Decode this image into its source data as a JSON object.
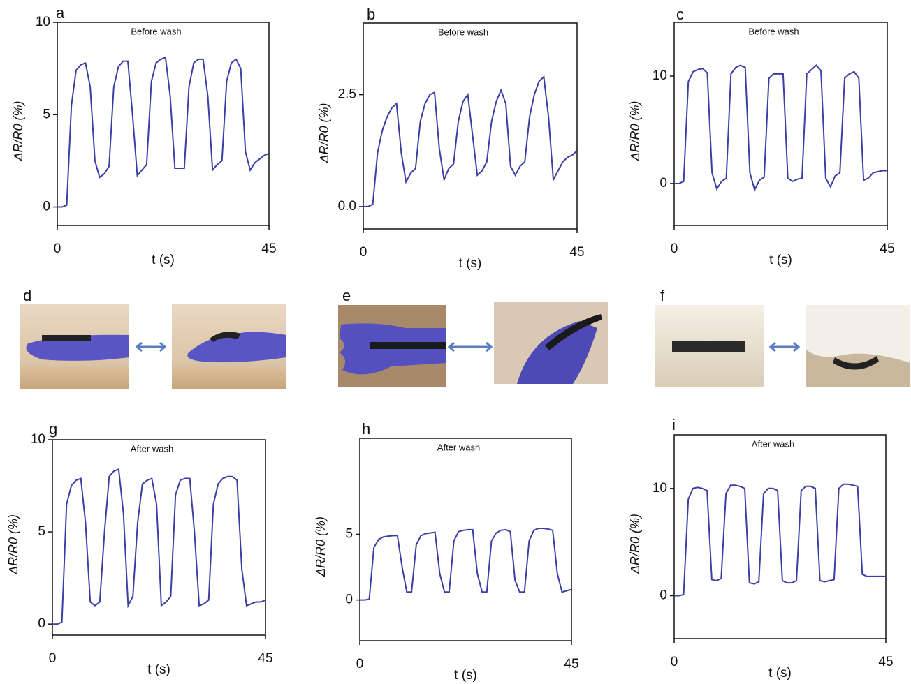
{
  "chart_data": [
    {
      "type": "line",
      "panel": "a",
      "title": "Before wash",
      "xlabel": "t (s)",
      "ylabel": "ΔR/R0 (%)",
      "color": "#3a3fa6",
      "x": [
        0,
        1,
        2,
        3,
        4,
        5,
        6,
        7,
        8,
        9,
        10,
        11,
        12,
        13,
        14,
        15,
        16,
        17,
        18,
        19,
        20,
        21,
        22,
        23,
        24,
        25,
        26,
        27,
        28,
        29,
        30,
        31,
        32,
        33,
        34,
        35,
        36,
        37,
        38,
        39,
        40,
        41,
        42,
        43,
        44,
        45
      ],
      "values": [
        0,
        0,
        0.1,
        5.5,
        7.4,
        7.7,
        7.8,
        6.5,
        2.5,
        1.6,
        1.8,
        2.2,
        6.5,
        7.6,
        7.9,
        7.9,
        5.0,
        1.7,
        2.0,
        2.3,
        6.8,
        7.8,
        8.0,
        8.1,
        6.0,
        2.1,
        2.1,
        2.1,
        6.5,
        7.8,
        8.0,
        8.0,
        6.0,
        2.0,
        2.3,
        2.5,
        6.8,
        7.8,
        8.0,
        7.5,
        3.0,
        2.0,
        2.4,
        2.6,
        2.8,
        2.9
      ],
      "xlim": [
        0,
        45
      ],
      "xticks": [
        0,
        45
      ],
      "ylim": [
        -1,
        10
      ],
      "yticks": [
        0,
        5,
        10
      ]
    },
    {
      "type": "line",
      "panel": "b",
      "title": "Before wash",
      "xlabel": "t (s)",
      "ylabel": "ΔR/R0 (%)",
      "color": "#3a3fa6",
      "x": [
        0,
        1,
        2,
        3,
        4,
        5,
        6,
        7,
        8,
        9,
        10,
        11,
        12,
        13,
        14,
        15,
        16,
        17,
        18,
        19,
        20,
        21,
        22,
        23,
        24,
        25,
        26,
        27,
        28,
        29,
        30,
        31,
        32,
        33,
        34,
        35,
        36,
        37,
        38,
        39,
        40,
        41,
        42,
        43,
        44,
        45
      ],
      "values": [
        0,
        0,
        0.05,
        1.2,
        1.7,
        2.0,
        2.2,
        2.3,
        1.2,
        0.55,
        0.75,
        0.85,
        1.9,
        2.3,
        2.5,
        2.55,
        1.3,
        0.6,
        0.85,
        0.95,
        1.9,
        2.35,
        2.5,
        1.6,
        0.7,
        0.8,
        1.0,
        1.9,
        2.35,
        2.6,
        2.3,
        0.9,
        0.7,
        0.9,
        1.0,
        2.0,
        2.5,
        2.8,
        2.9,
        2.0,
        0.6,
        0.8,
        1.0,
        1.1,
        1.15,
        1.25
      ],
      "xlim": [
        0,
        45
      ],
      "xticks": [
        0,
        45
      ],
      "ylim": [
        -0.5,
        4.1
      ],
      "yticks": [
        {
          "value": 0,
          "label": "0.0"
        },
        2.5
      ]
    },
    {
      "type": "line",
      "panel": "c",
      "title": "Before wash",
      "xlabel": "t (s)",
      "ylabel": "ΔR/R0 (%)",
      "color": "#3a3fa6",
      "x": [
        0,
        1,
        2,
        3,
        4,
        5,
        6,
        7,
        8,
        9,
        10,
        11,
        12,
        13,
        14,
        15,
        16,
        17,
        18,
        19,
        20,
        21,
        22,
        23,
        24,
        25,
        26,
        27,
        28,
        29,
        30,
        31,
        32,
        33,
        34,
        35,
        36,
        37,
        38,
        39,
        40,
        41,
        42,
        43,
        44,
        45
      ],
      "values": [
        0,
        0,
        0.2,
        9.5,
        10.4,
        10.6,
        10.7,
        10.3,
        1.0,
        -0.5,
        0.2,
        0.5,
        10.2,
        10.8,
        11.0,
        10.8,
        1.0,
        -0.6,
        0.3,
        0.6,
        9.8,
        10.2,
        10.2,
        10.2,
        0.5,
        0.2,
        0.4,
        0.5,
        10.2,
        10.6,
        11.0,
        10.5,
        0.5,
        -0.3,
        0.7,
        1.0,
        9.8,
        10.2,
        10.4,
        9.8,
        0.3,
        0.5,
        1.0,
        1.1,
        1.2,
        1.2
      ],
      "xlim": [
        0,
        45
      ],
      "xticks": [
        0,
        45
      ],
      "ylim": [
        -3.9,
        15
      ],
      "yticks": [
        0,
        10
      ]
    },
    {
      "type": "line",
      "panel": "g",
      "title": "After wash",
      "xlabel": "t (s)",
      "ylabel": "ΔR/R0 (%)",
      "color": "#3a3fa6",
      "x": [
        0,
        1,
        2,
        3,
        4,
        5,
        6,
        7,
        8,
        9,
        10,
        11,
        12,
        13,
        14,
        15,
        16,
        17,
        18,
        19,
        20,
        21,
        22,
        23,
        24,
        25,
        26,
        27,
        28,
        29,
        30,
        31,
        32,
        33,
        34,
        35,
        36,
        37,
        38,
        39,
        40,
        41,
        42,
        43,
        44,
        45
      ],
      "values": [
        0,
        0,
        0.1,
        6.5,
        7.5,
        7.8,
        7.9,
        5.5,
        1.2,
        1.0,
        1.2,
        5.0,
        8.0,
        8.3,
        8.4,
        6.0,
        1.0,
        1.5,
        5.5,
        7.6,
        7.8,
        7.9,
        6.5,
        1.0,
        1.2,
        1.5,
        7.0,
        7.8,
        7.9,
        7.9,
        5.0,
        1.0,
        1.1,
        1.3,
        6.5,
        7.6,
        7.9,
        8.0,
        8.0,
        7.8,
        3.0,
        1.0,
        1.1,
        1.2,
        1.2,
        1.3
      ],
      "xlim": [
        0,
        45
      ],
      "xticks": [
        0,
        45
      ],
      "ylim": [
        -0.6,
        10
      ],
      "yticks": [
        0,
        5,
        10
      ]
    },
    {
      "type": "line",
      "panel": "h",
      "title": "After wash",
      "xlabel": "t (s)",
      "ylabel": "ΔR/R0 (%)",
      "color": "#3a3fa6",
      "x": [
        0,
        1,
        2,
        3,
        4,
        5,
        6,
        7,
        8,
        9,
        10,
        11,
        12,
        13,
        14,
        15,
        16,
        17,
        18,
        19,
        20,
        21,
        22,
        23,
        24,
        25,
        26,
        27,
        28,
        29,
        30,
        31,
        32,
        33,
        34,
        35,
        36,
        37,
        38,
        39,
        40,
        41,
        42,
        43,
        44,
        45
      ],
      "values": [
        0,
        0,
        0.05,
        4.0,
        4.6,
        4.8,
        4.85,
        4.9,
        4.9,
        2.5,
        0.6,
        0.6,
        4.2,
        4.9,
        5.05,
        5.1,
        5.15,
        2.0,
        0.6,
        0.6,
        4.5,
        5.2,
        5.3,
        5.35,
        5.35,
        2.0,
        0.6,
        0.6,
        4.5,
        5.1,
        5.3,
        5.35,
        5.2,
        1.5,
        0.6,
        0.6,
        4.5,
        5.3,
        5.45,
        5.45,
        5.4,
        5.3,
        2.0,
        0.6,
        0.7,
        0.8
      ],
      "xlim": [
        0,
        45
      ],
      "xticks": [
        0,
        45
      ],
      "ylim": [
        -3.1,
        12.3
      ],
      "yticks": [
        0,
        5
      ]
    },
    {
      "type": "line",
      "panel": "i",
      "title": "After wash",
      "xlabel": "t (s)",
      "ylabel": "ΔR/R0 (%)",
      "color": "#3a3fa6",
      "x": [
        0,
        1,
        2,
        3,
        4,
        5,
        6,
        7,
        8,
        9,
        10,
        11,
        12,
        13,
        14,
        15,
        16,
        17,
        18,
        19,
        20,
        21,
        22,
        23,
        24,
        25,
        26,
        27,
        28,
        29,
        30,
        31,
        32,
        33,
        34,
        35,
        36,
        37,
        38,
        39,
        40,
        41,
        42,
        43,
        44,
        45
      ],
      "values": [
        0,
        0,
        0.1,
        9.0,
        10.0,
        10.1,
        10.0,
        9.8,
        1.5,
        1.4,
        1.6,
        9.5,
        10.3,
        10.3,
        10.2,
        10.0,
        1.2,
        1.1,
        1.3,
        9.5,
        10.0,
        10.0,
        9.8,
        1.4,
        1.2,
        1.2,
        1.4,
        9.8,
        10.2,
        10.2,
        10.0,
        1.4,
        1.3,
        1.4,
        1.5,
        10.0,
        10.4,
        10.4,
        10.3,
        10.2,
        2.0,
        1.8,
        1.8,
        1.8,
        1.8,
        1.8
      ],
      "xlim": [
        0,
        45
      ],
      "xticks": [
        0,
        45
      ],
      "ylim": [
        -4,
        15
      ],
      "yticks": [
        0,
        10
      ]
    }
  ],
  "photo_panels": [
    {
      "label": "d"
    },
    {
      "label": "e"
    },
    {
      "label": "f"
    }
  ]
}
